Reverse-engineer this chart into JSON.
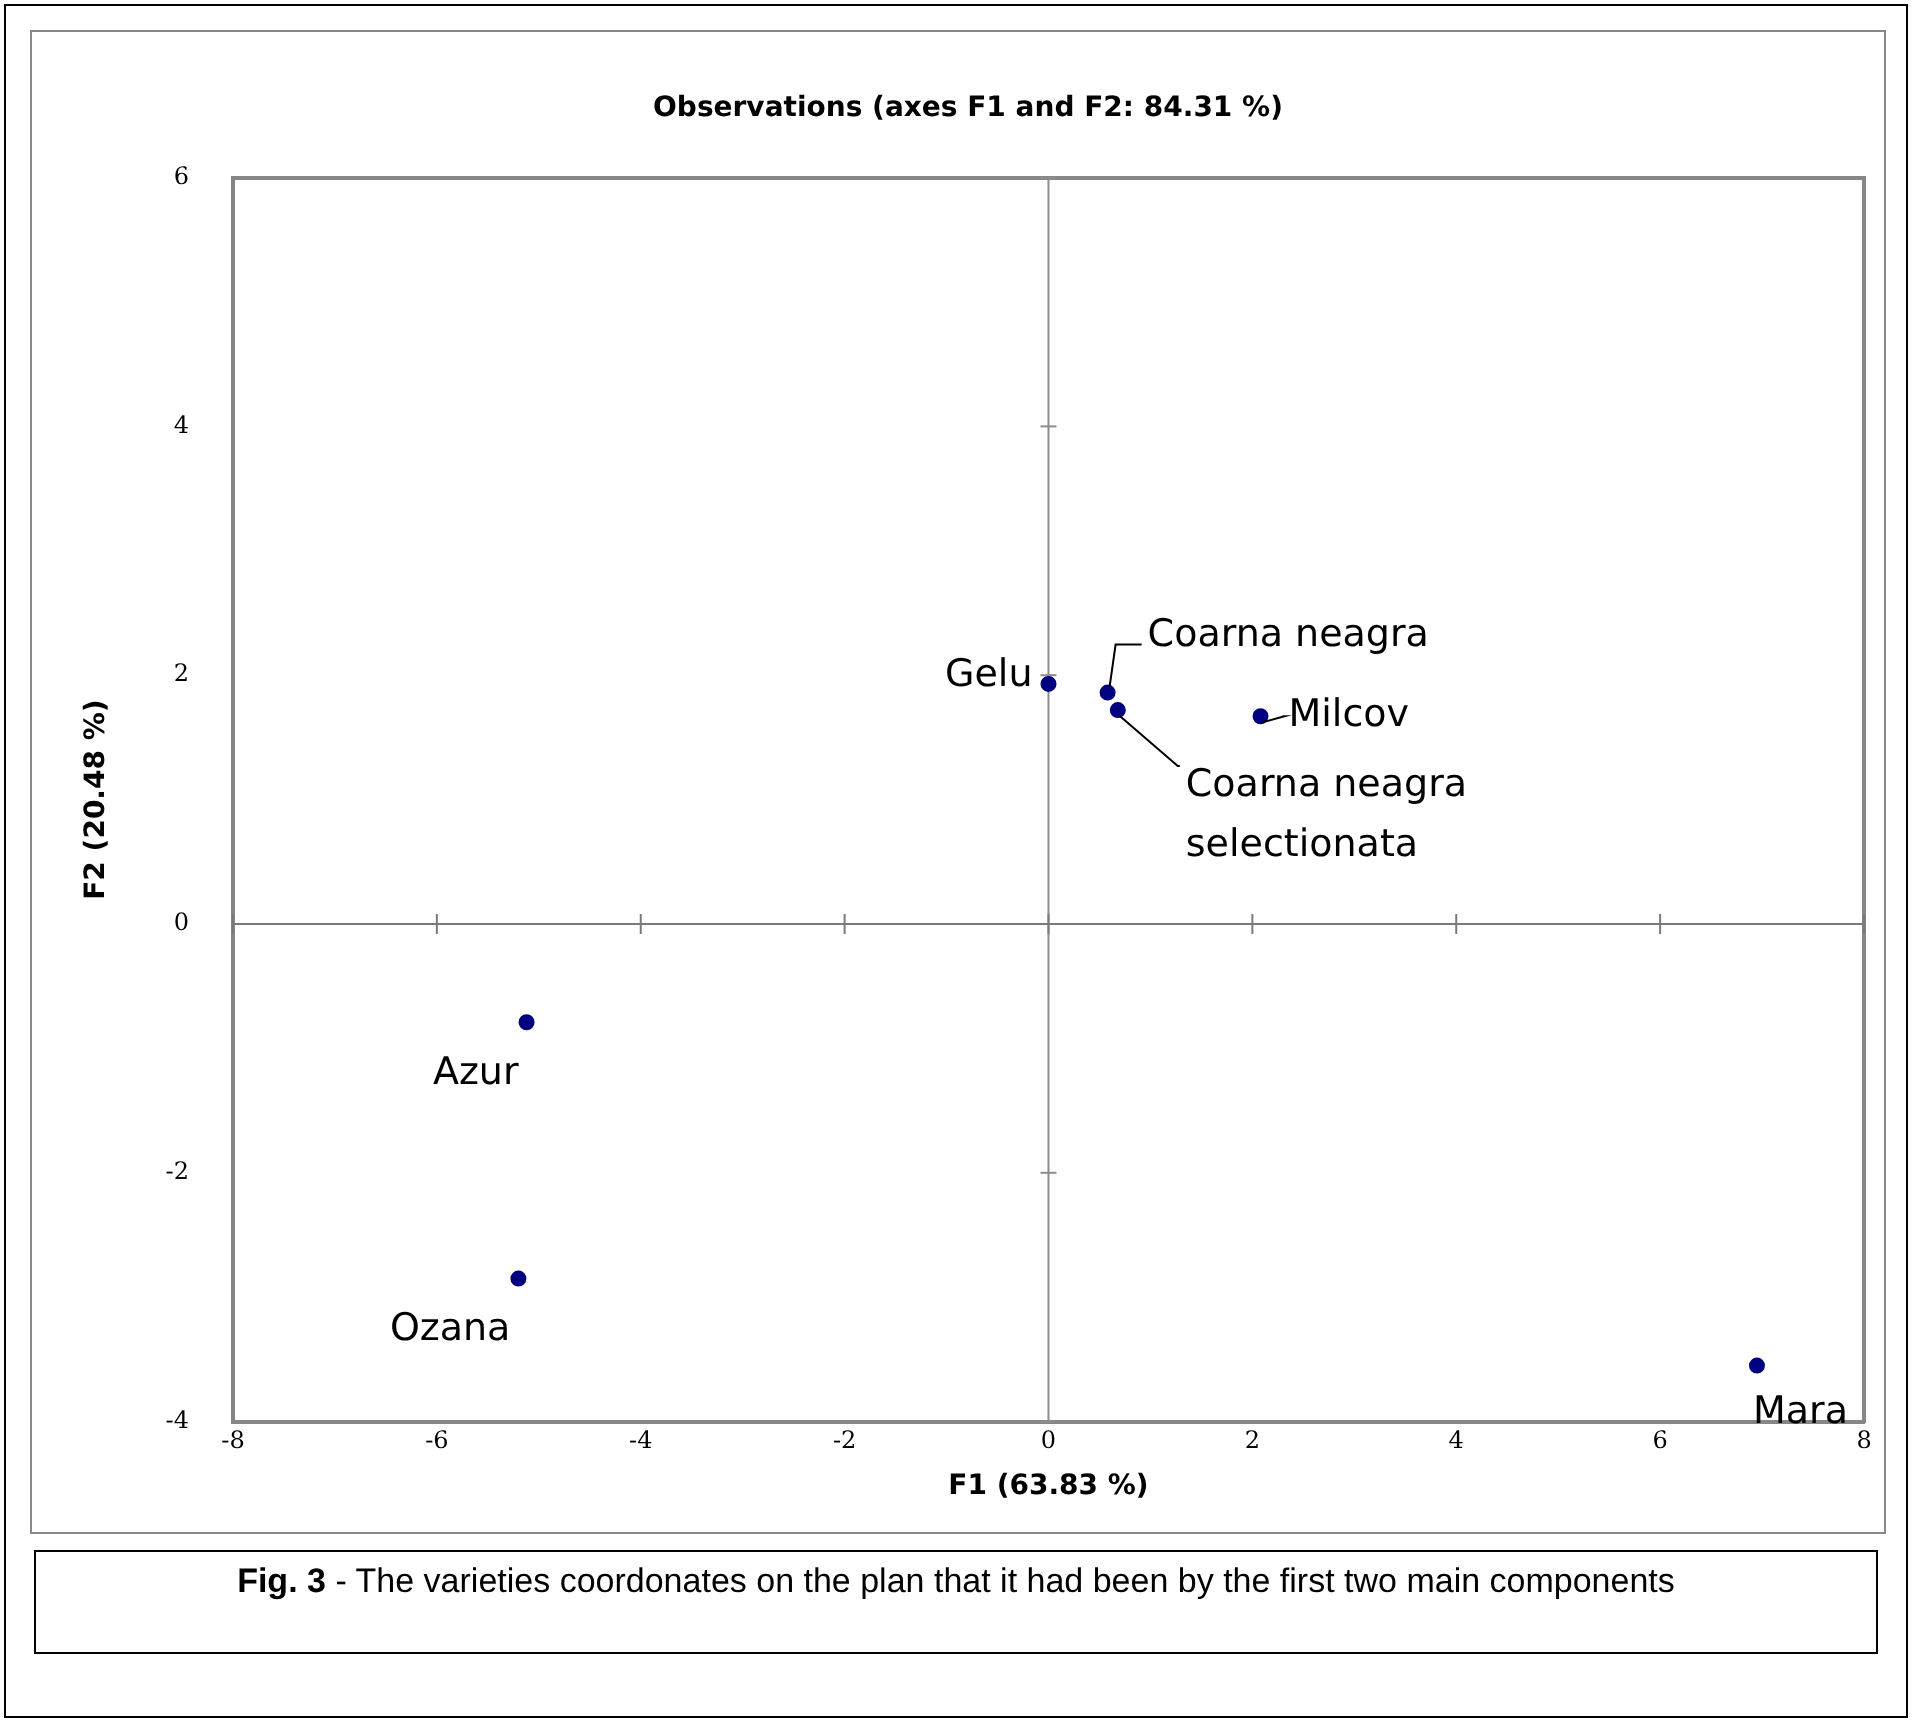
{
  "chart_data": {
    "type": "scatter",
    "title": "Observations (axes F1 and F2: 84.31 %)",
    "xlabel": "F1 (63.83 %)",
    "ylabel": "F2 (20.48 %)",
    "x": [
      0,
      0.58,
      0.68,
      2.08,
      -5.12,
      -5.2,
      6.95
    ],
    "series": [
      {
        "color": "#000080",
        "values": [
          1.93,
          1.86,
          1.72,
          1.67,
          -0.79,
          -2.85,
          -3.55
        ]
      }
    ],
    "xlim": [
      -8,
      8
    ],
    "xticks": [
      -8,
      -6,
      -4,
      -2,
      0,
      2,
      4,
      6,
      8
    ],
    "ylim": [
      -4,
      6
    ],
    "yticks": [
      -4,
      -2,
      0,
      2,
      4,
      6
    ],
    "ref_lines": [
      {
        "axis": "x",
        "value": 0,
        "color": "#8c8c8c"
      },
      {
        "axis": "y",
        "value": 0,
        "color": "#7a7a7a"
      }
    ],
    "grid": false,
    "legend": false,
    "marker": "circle",
    "annotations": [
      {
        "text": "Gelu",
        "x": 0,
        "y": 1.93
      },
      {
        "text": "Coarna neagra",
        "x": 0.58,
        "y": 1.86
      },
      {
        "text": "Coarna neagra selectionata",
        "x": 0.68,
        "y": 1.72
      },
      {
        "text": "Milcov",
        "x": 2.08,
        "y": 1.67
      },
      {
        "text": "Azur",
        "x": -5.12,
        "y": -0.79
      },
      {
        "text": "Ozana",
        "x": -5.2,
        "y": -2.85
      },
      {
        "text": "Mara",
        "x": 6.95,
        "y": -3.55
      },
      "Fig. 3 - The varieties coordonates on the plan that it had been by the first two main components"
    ]
  }
}
